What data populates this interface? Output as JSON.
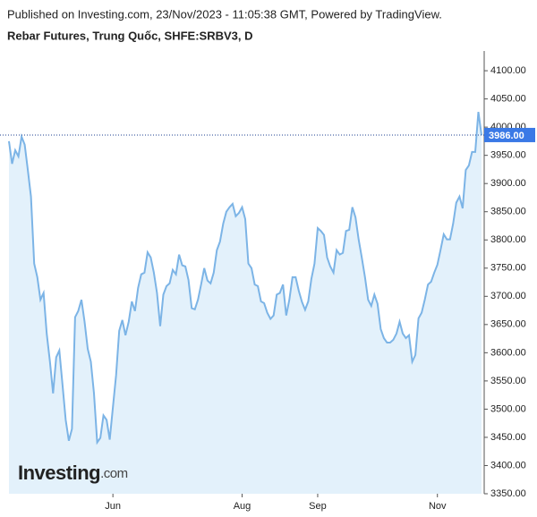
{
  "header": {
    "published": "Published on Investing.com, 23/Nov/2023 - 11:05:38 GMT, Powered by TradingView."
  },
  "chart_data": {
    "type": "area",
    "title": "Rebar Futures, Trung Quốc, SHFE:SRBV3, D",
    "categories": [
      null,
      null,
      null,
      null,
      null,
      null,
      null,
      null,
      null,
      null,
      null,
      null,
      null,
      null,
      null,
      null,
      null,
      null,
      null,
      null,
      null,
      null,
      null,
      null,
      null,
      null,
      null,
      null,
      null,
      null,
      null,
      null,
      null,
      "Jun",
      null,
      null,
      null,
      null,
      null,
      null,
      null,
      null,
      null,
      null,
      null,
      null,
      null,
      null,
      null,
      null,
      null,
      null,
      null,
      null,
      null,
      null,
      null,
      null,
      null,
      null,
      null,
      null,
      null,
      null,
      null,
      null,
      null,
      null,
      null,
      null,
      null,
      null,
      null,
      null,
      "Aug",
      null,
      null,
      null,
      null,
      null,
      null,
      null,
      null,
      null,
      null,
      null,
      null,
      null,
      null,
      null,
      null,
      null,
      null,
      null,
      null,
      null,
      null,
      null,
      "Sep",
      null,
      null,
      null,
      null,
      null,
      null,
      null,
      null,
      null,
      null,
      null,
      null,
      null,
      null,
      null,
      null,
      null,
      null,
      null,
      null,
      null,
      null,
      null,
      null,
      null,
      null,
      null,
      null,
      null,
      null,
      null,
      null,
      null,
      null,
      null,
      null,
      null,
      "Nov",
      null,
      null,
      null,
      null,
      null,
      null,
      null,
      null,
      null,
      null,
      null,
      null,
      null,
      null
    ],
    "values": [
      3975,
      3935,
      3959,
      3948,
      3983,
      3969,
      3924,
      3877,
      3758,
      3734,
      3694,
      3706,
      3634,
      3584,
      3528,
      3592,
      3604,
      3544,
      3481,
      3444,
      3465,
      3663,
      3674,
      3694,
      3655,
      3607,
      3584,
      3528,
      3441,
      3449,
      3489,
      3481,
      3446,
      3504,
      3560,
      3639,
      3658,
      3631,
      3655,
      3691,
      3674,
      3715,
      3739,
      3742,
      3778,
      3769,
      3742,
      3706,
      3647,
      3703,
      3718,
      3723,
      3747,
      3739,
      3774,
      3755,
      3753,
      3729,
      3679,
      3677,
      3694,
      3721,
      3750,
      3728,
      3723,
      3742,
      3782,
      3797,
      3829,
      3850,
      3858,
      3864,
      3842,
      3848,
      3858,
      3837,
      3758,
      3750,
      3721,
      3718,
      3691,
      3688,
      3671,
      3660,
      3666,
      3703,
      3706,
      3721,
      3666,
      3694,
      3734,
      3734,
      3710,
      3690,
      3676,
      3691,
      3731,
      3758,
      3821,
      3816,
      3809,
      3769,
      3753,
      3742,
      3782,
      3774,
      3777,
      3816,
      3818,
      3858,
      3840,
      3801,
      3769,
      3734,
      3694,
      3683,
      3703,
      3687,
      3642,
      3626,
      3618,
      3618,
      3623,
      3634,
      3655,
      3634,
      3626,
      3631,
      3584,
      3596,
      3661,
      3671,
      3694,
      3721,
      3726,
      3742,
      3756,
      3782,
      3810,
      3801,
      3801,
      3829,
      3866,
      3877,
      3856,
      3924,
      3932,
      3956,
      3956,
      4027,
      3986
    ],
    "color": "#7cb4e6",
    "fill": "#e3f1fb",
    "ylim": [
      3350,
      4135
    ],
    "yticks": [
      {
        "value": 3350,
        "label": "3350.00"
      },
      {
        "value": 3400,
        "label": "3400.00"
      },
      {
        "value": 3450,
        "label": "3450.00"
      },
      {
        "value": 3500,
        "label": "3500.00"
      },
      {
        "value": 3550,
        "label": "3550.00"
      },
      {
        "value": 3600,
        "label": "3600.00"
      },
      {
        "value": 3650,
        "label": "3650.00"
      },
      {
        "value": 3700,
        "label": "3700.00"
      },
      {
        "value": 3750,
        "label": "3750.00"
      },
      {
        "value": 3800,
        "label": "3800.00"
      },
      {
        "value": 3850,
        "label": "3850.00"
      },
      {
        "value": 3900,
        "label": "3900.00"
      },
      {
        "value": 3950,
        "label": "3950.00"
      },
      {
        "value": 4000,
        "label": "4000.00"
      },
      {
        "value": 4050,
        "label": "4050.00"
      },
      {
        "value": 4100,
        "label": "4100.00"
      }
    ],
    "price_line": {
      "value": 3986,
      "label": "3986.00"
    },
    "logo": "Investing",
    "logo_suffix": ".com"
  }
}
